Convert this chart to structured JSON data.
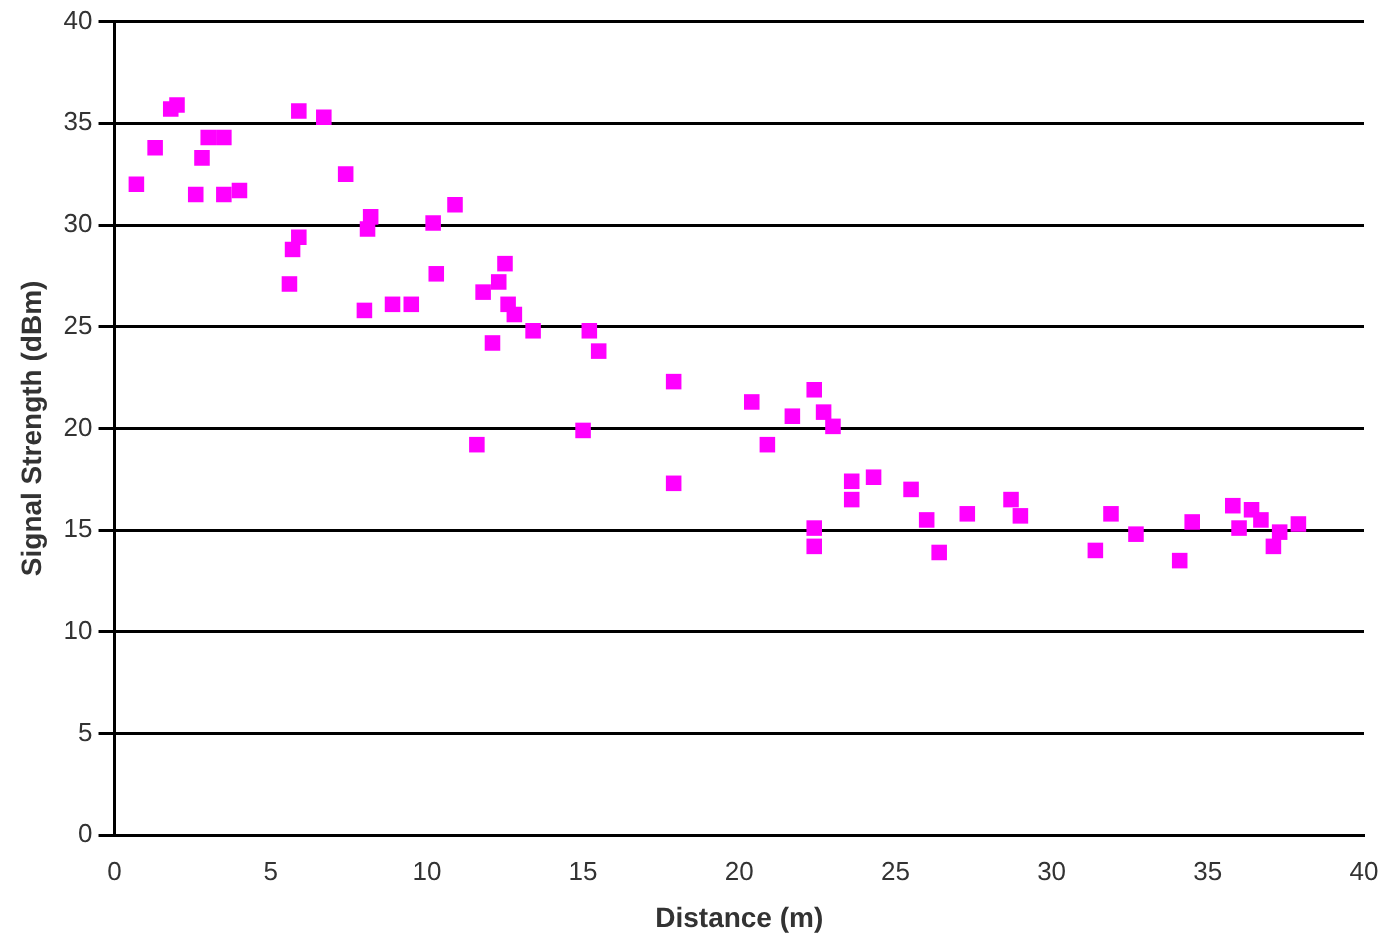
{
  "chart_data": {
    "type": "scatter",
    "xlabel": "Distance (m)",
    "ylabel": "Signal Strength (dBm)",
    "xlim": [
      0,
      40
    ],
    "xticks": [
      0,
      5,
      10,
      15,
      20,
      25,
      30,
      35,
      40
    ],
    "ylim": [
      0,
      40
    ],
    "yticks": [
      0,
      5,
      10,
      15,
      20,
      25,
      30,
      35,
      40
    ],
    "grid": "y",
    "legend": false,
    "marker": "square",
    "series": [
      {
        "color": "#ff00ff",
        "x": [
          0.7,
          1.3,
          1.8,
          2.0,
          2.6,
          2.8,
          3.0,
          3.5,
          3.5,
          4.0,
          5.6,
          5.7,
          5.9,
          5.9,
          6.7,
          7.4,
          8.0,
          8.1,
          8.2,
          8.9,
          9.5,
          10.2,
          10.3,
          10.9,
          11.6,
          11.8,
          12.1,
          12.3,
          12.5,
          12.6,
          12.8,
          13.4,
          15.2,
          15.5,
          15.0,
          17.9,
          17.9,
          20.4,
          20.9,
          21.7,
          22.4,
          22.4,
          22.4,
          22.7,
          23.0,
          23.6,
          23.6,
          24.3,
          25.5,
          26.0,
          26.4,
          27.3,
          28.7,
          29.0,
          31.4,
          31.9,
          32.7,
          34.1,
          34.5,
          35.8,
          36.0,
          36.4,
          36.7,
          37.1,
          37.3,
          37.9
        ],
        "values": [
          32.0,
          33.8,
          35.7,
          35.9,
          31.5,
          33.3,
          34.3,
          34.3,
          31.5,
          31.7,
          27.1,
          28.8,
          29.4,
          35.6,
          35.3,
          32.5,
          25.8,
          29.8,
          30.4,
          26.1,
          26.1,
          30.1,
          27.6,
          31.0,
          19.2,
          26.7,
          24.2,
          27.2,
          28.1,
          26.1,
          25.6,
          24.8,
          24.8,
          23.8,
          19.9,
          22.3,
          17.3,
          21.3,
          19.2,
          20.6,
          21.9,
          14.2,
          15.1,
          20.8,
          20.1,
          16.5,
          17.4,
          17.6,
          17.0,
          15.5,
          13.9,
          15.8,
          16.5,
          15.7,
          14.0,
          15.8,
          14.8,
          13.5,
          15.4,
          16.2,
          15.1,
          16.0,
          15.5,
          14.2,
          14.9,
          15.3
        ]
      }
    ]
  }
}
